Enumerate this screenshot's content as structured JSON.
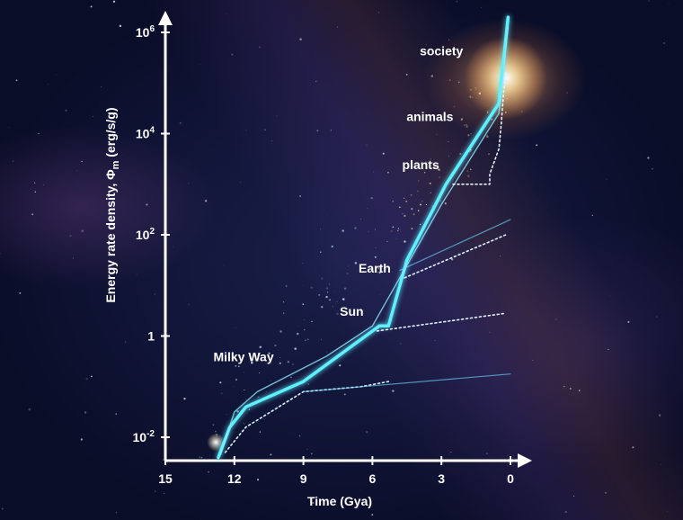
{
  "chart_data": {
    "type": "line",
    "xlabel": "Time (Gya)",
    "ylabel_main": "Energy rate density, Φ",
    "ylabel_sub": "m",
    "ylabel_units": " (erg/s/g)",
    "x_ticks": [
      15,
      12,
      9,
      6,
      3,
      0
    ],
    "x_range": [
      15,
      0
    ],
    "y_scale": "log",
    "y_range_log10": [
      -2.3,
      6.5
    ],
    "y_ticks": [
      {
        "log": -2,
        "base": "10",
        "exp": "-2"
      },
      {
        "log": 0,
        "base": "1",
        "exp": ""
      },
      {
        "log": 2,
        "base": "10",
        "exp": "2"
      },
      {
        "log": 4,
        "base": "10",
        "exp": "4"
      },
      {
        "log": 6,
        "base": "10",
        "exp": "6"
      }
    ],
    "series": [
      {
        "style": "main",
        "color": "#5ff0ff",
        "x": [
          12.7,
          12.2,
          11.5,
          9,
          5.7,
          5.3,
          4.5,
          2.8,
          0.5,
          0.1
        ],
        "y": [
          -2.4,
          -1.8,
          -1.4,
          -0.9,
          0.2,
          0.2,
          1.5,
          3.0,
          4.6,
          6.3
        ]
      },
      {
        "style": "outline",
        "color": "#8fe8ff",
        "x": [
          12.6,
          12.0,
          11.0,
          8.0,
          6.0,
          5.0,
          3.0,
          0.5,
          0.1
        ],
        "y": [
          -2.35,
          -1.5,
          -1.1,
          -0.4,
          0.2,
          1.0,
          2.6,
          4.4,
          6.1
        ]
      },
      {
        "style": "dotted",
        "color": "#d8f2ff",
        "x": [
          12.4,
          11.5,
          9.0,
          6.5,
          5.3
        ],
        "y": [
          -2.3,
          -1.8,
          -1.1,
          -1.0,
          -0.9
        ]
      },
      {
        "style": "faint",
        "color": "#6fd8ff",
        "x": [
          9.0,
          0.0
        ],
        "y": [
          -1.1,
          -0.75
        ]
      },
      {
        "style": "dotted",
        "color": "#e0f0ff",
        "x": [
          5.8,
          0.2
        ],
        "y": [
          0.1,
          0.45
        ]
      },
      {
        "style": "dotted",
        "color": "#e0f0ff",
        "x": [
          4.6,
          0.2
        ],
        "y": [
          1.15,
          2.0
        ]
      },
      {
        "style": "faint",
        "color": "#6fd8ff",
        "x": [
          4.8,
          0.0
        ],
        "y": [
          1.3,
          2.3
        ]
      },
      {
        "style": "dotted",
        "color": "#e8f2ff",
        "x": [
          2.5,
          0.9,
          0.9,
          0.5,
          0.4,
          0.3,
          0.2
        ],
        "y": [
          3.0,
          3.0,
          3.2,
          3.7,
          4.2,
          4.8,
          5.2
        ]
      }
    ],
    "annotations": [
      {
        "text": "society",
        "x": 3.0,
        "y": 5.55
      },
      {
        "text": "animals",
        "x": 3.5,
        "y": 4.25
      },
      {
        "text": "plants",
        "x": 3.9,
        "y": 3.3
      },
      {
        "text": "Earth",
        "x": 5.9,
        "y": 1.25
      },
      {
        "text": "Sun",
        "x": 6.9,
        "y": 0.4
      },
      {
        "text": "Milky Way",
        "x": 11.6,
        "y": -0.5
      }
    ],
    "grid": false
  }
}
